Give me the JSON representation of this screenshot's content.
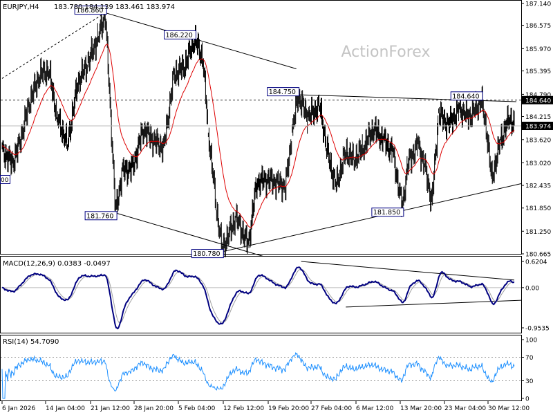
{
  "header": {
    "symbol": "EURJPY,H4",
    "ohlc": "183.780 184.139 183.461 183.974"
  },
  "watermark": "ActionForex",
  "colors": {
    "bar": "#000000",
    "ma": "#dd0000",
    "macd_line": "#000080",
    "macd_signal": "#a0a0a0",
    "rsi": "#1e90ff",
    "trendline": "#000000",
    "label_border": "#000080"
  },
  "chart_data": [
    {
      "type": "ohlc",
      "panel": "price",
      "ylim": [
        180.665,
        187.14
      ],
      "y_ticks": [
        "187.140",
        "186.575",
        "185.970",
        "185.395",
        "184.790",
        "184.215",
        "183.620",
        "183.020",
        "182.435",
        "181.850",
        "181.250",
        "180.665"
      ],
      "current_price": "183.974",
      "horizontal_level": "184.640",
      "x_ticks": [
        "6 Jan 2026",
        "14 Jan 04:00",
        "21 Jan 12:00",
        "28 Jan 20:00",
        "5 Feb 04:00",
        "12 Feb 12:00",
        "19 Feb 20:00",
        "27 Feb 04:00",
        "6 Mar 12:00",
        "13 Mar 20:00",
        "23 Mar 04:00",
        "30 Mar 12:00"
      ],
      "annotations": [
        {
          "label": "186.860",
          "bar": 150,
          "price": 186.86
        },
        {
          "label": "186.220",
          "bar": 280,
          "price": 186.22
        },
        {
          "label": "184.750",
          "bar": 430,
          "price": 184.75
        },
        {
          "label": "184.640",
          "bar": 697,
          "price": 184.64
        },
        {
          "label": "181.760",
          "bar": 165,
          "price": 181.76
        },
        {
          "label": "181.850",
          "bar": 582,
          "price": 181.85
        },
        {
          "label": "180.780",
          "bar": 320,
          "price": 180.78
        }
      ],
      "partial_left_label": "00",
      "anchors": [
        [
          2,
          183.3
        ],
        [
          15,
          183.0
        ],
        [
          25,
          183.5
        ],
        [
          40,
          184.6
        ],
        [
          55,
          185.3
        ],
        [
          68,
          185.4
        ],
        [
          80,
          184.2
        ],
        [
          95,
          183.5
        ],
        [
          110,
          185.1
        ],
        [
          125,
          185.6
        ],
        [
          140,
          186.3
        ],
        [
          150,
          186.86
        ],
        [
          158,
          184.2
        ],
        [
          165,
          181.76
        ],
        [
          175,
          182.8
        ],
        [
          190,
          182.9
        ],
        [
          205,
          183.9
        ],
        [
          220,
          183.6
        ],
        [
          235,
          183.4
        ],
        [
          250,
          185.3
        ],
        [
          265,
          185.5
        ],
        [
          280,
          186.22
        ],
        [
          292,
          185.7
        ],
        [
          300,
          183.8
        ],
        [
          312,
          181.8
        ],
        [
          320,
          180.78
        ],
        [
          340,
          181.6
        ],
        [
          358,
          180.9
        ],
        [
          370,
          182.5
        ],
        [
          385,
          182.6
        ],
        [
          400,
          182.5
        ],
        [
          412,
          182.4
        ],
        [
          422,
          183.8
        ],
        [
          430,
          184.75
        ],
        [
          445,
          184.2
        ],
        [
          462,
          184.5
        ],
        [
          472,
          183.4
        ],
        [
          485,
          182.4
        ],
        [
          500,
          183.3
        ],
        [
          512,
          183.1
        ],
        [
          525,
          183.4
        ],
        [
          540,
          183.9
        ],
        [
          555,
          183.6
        ],
        [
          568,
          183.3
        ],
        [
          582,
          181.85
        ],
        [
          590,
          183.0
        ],
        [
          605,
          183.5
        ],
        [
          615,
          182.9
        ],
        [
          625,
          182.0
        ],
        [
          635,
          184.3
        ],
        [
          648,
          184.0
        ],
        [
          665,
          184.4
        ],
        [
          680,
          184.2
        ],
        [
          697,
          184.64
        ],
        [
          705,
          183.8
        ],
        [
          712,
          182.6
        ],
        [
          725,
          183.6
        ],
        [
          738,
          184.2
        ],
        [
          745,
          183.97
        ]
      ],
      "trendlines": [
        {
          "from": [
            0,
            185.2
          ],
          "to": [
            150,
            186.9
          ],
          "style": "dashed"
        },
        {
          "from": [
            150,
            186.9
          ],
          "to": [
            428,
            185.45
          ],
          "style": "solid"
        },
        {
          "from": [
            160,
            181.75
          ],
          "to": [
            380,
            180.6
          ],
          "style": "solid"
        },
        {
          "from": [
            320,
            180.72
          ],
          "to": [
            755,
            182.48
          ],
          "style": "solid"
        },
        {
          "from": [
            430,
            184.78
          ],
          "to": [
            748,
            184.6
          ],
          "style": "solid"
        }
      ]
    },
    {
      "type": "line",
      "panel": "macd",
      "title": "MACD(12,26,9) 0.0383 -0.0497",
      "ylim": [
        -0.9535,
        0.6204
      ],
      "y_ticks": [
        "0.6204",
        "0.00",
        "-0.9535"
      ],
      "trendlines": [
        {
          "from": [
            435,
            0.62
          ],
          "to": [
            745,
            0.18
          ],
          "style": "solid"
        },
        {
          "from": [
            500,
            -0.46
          ],
          "to": [
            755,
            -0.3
          ],
          "style": "solid"
        }
      ]
    },
    {
      "type": "line",
      "panel": "rsi",
      "title": "RSI(14) 54.7090",
      "ylim": [
        0,
        100
      ],
      "y_ticks": [
        "100",
        "70",
        "30",
        "0"
      ],
      "levels": [
        70,
        30
      ]
    }
  ]
}
